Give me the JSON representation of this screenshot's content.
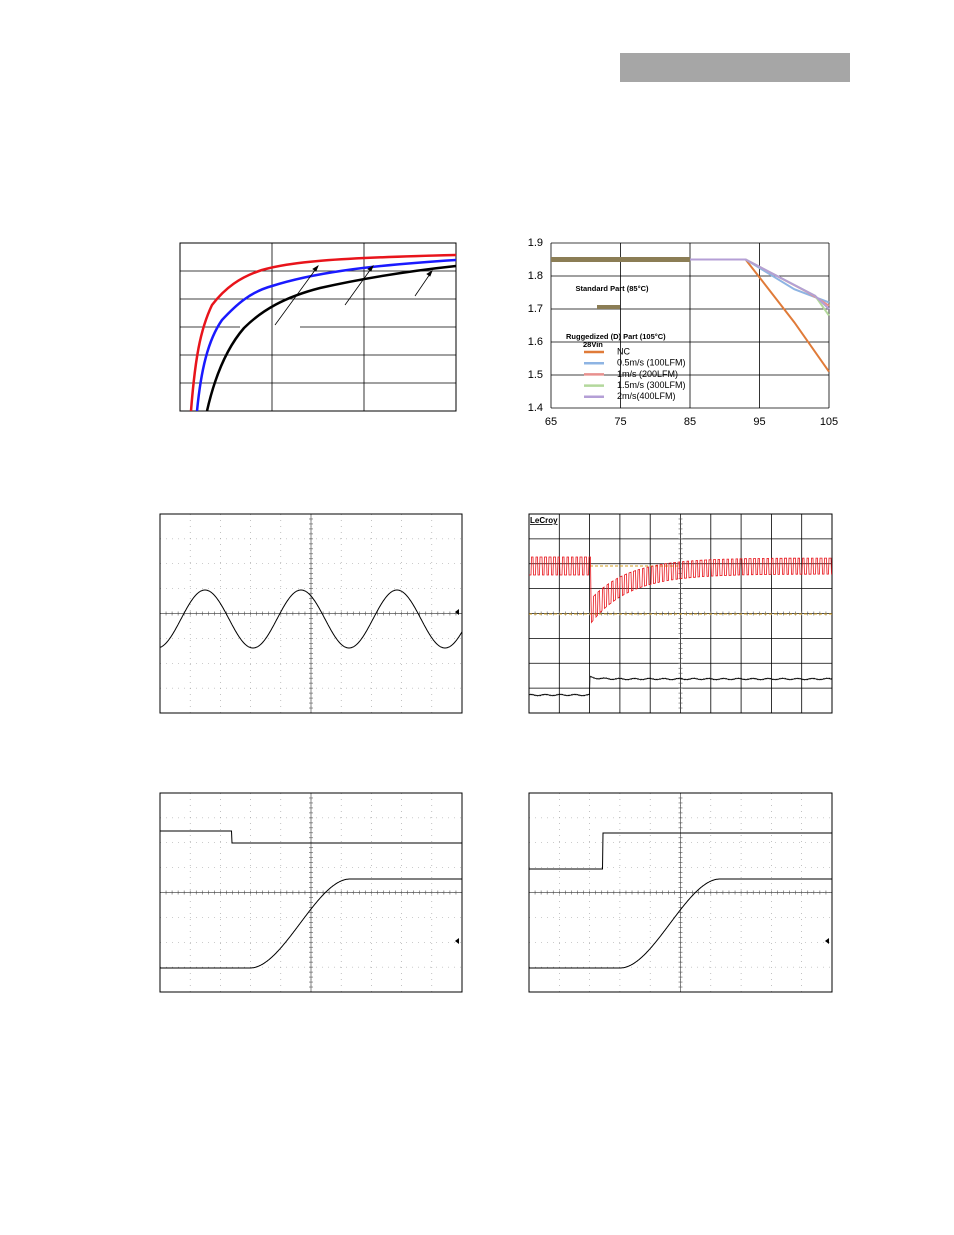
{
  "scope_label": "LeCroy",
  "chart_data": {
    "type": "line",
    "xlim": [
      65,
      105
    ],
    "xticks": [
      65,
      75,
      85,
      95,
      105
    ],
    "ylim": [
      1.4,
      1.9
    ],
    "yticks": [
      1.9,
      1.8,
      1.7,
      1.6,
      1.5,
      1.4
    ],
    "grid": true,
    "annotations": [
      "Ruggedized (D) Part (105°C)",
      "28Vin"
    ],
    "series": [
      {
        "name": "Standard Part (85°C)",
        "color": "#8b7d55",
        "x": [
          65,
          85
        ],
        "values": [
          1.85,
          1.85
        ]
      },
      {
        "name": "NC",
        "color": "#e07b39",
        "x": [
          65,
          93,
          100,
          105
        ],
        "values": [
          1.85,
          1.85,
          1.66,
          1.51
        ]
      },
      {
        "name": "0.5m/s (100LFM)",
        "color": "#8eb4e3",
        "x": [
          65,
          93,
          100,
          105
        ],
        "values": [
          1.85,
          1.85,
          1.76,
          1.72
        ]
      },
      {
        "name": "1m/s (200LFM)",
        "color": "#e8908e",
        "x": [
          65,
          93,
          102,
          105
        ],
        "values": [
          1.85,
          1.85,
          1.75,
          1.71
        ]
      },
      {
        "name": "1.5m/s (300LFM)",
        "color": "#b3d89c",
        "x": [
          65,
          93,
          103,
          105
        ],
        "values": [
          1.85,
          1.85,
          1.74,
          1.68
        ]
      },
      {
        "name": "2m/s(400LFM)",
        "color": "#b49fd6",
        "x": [
          65,
          93,
          103,
          105
        ],
        "values": [
          1.85,
          1.85,
          1.74,
          1.7
        ]
      }
    ]
  }
}
